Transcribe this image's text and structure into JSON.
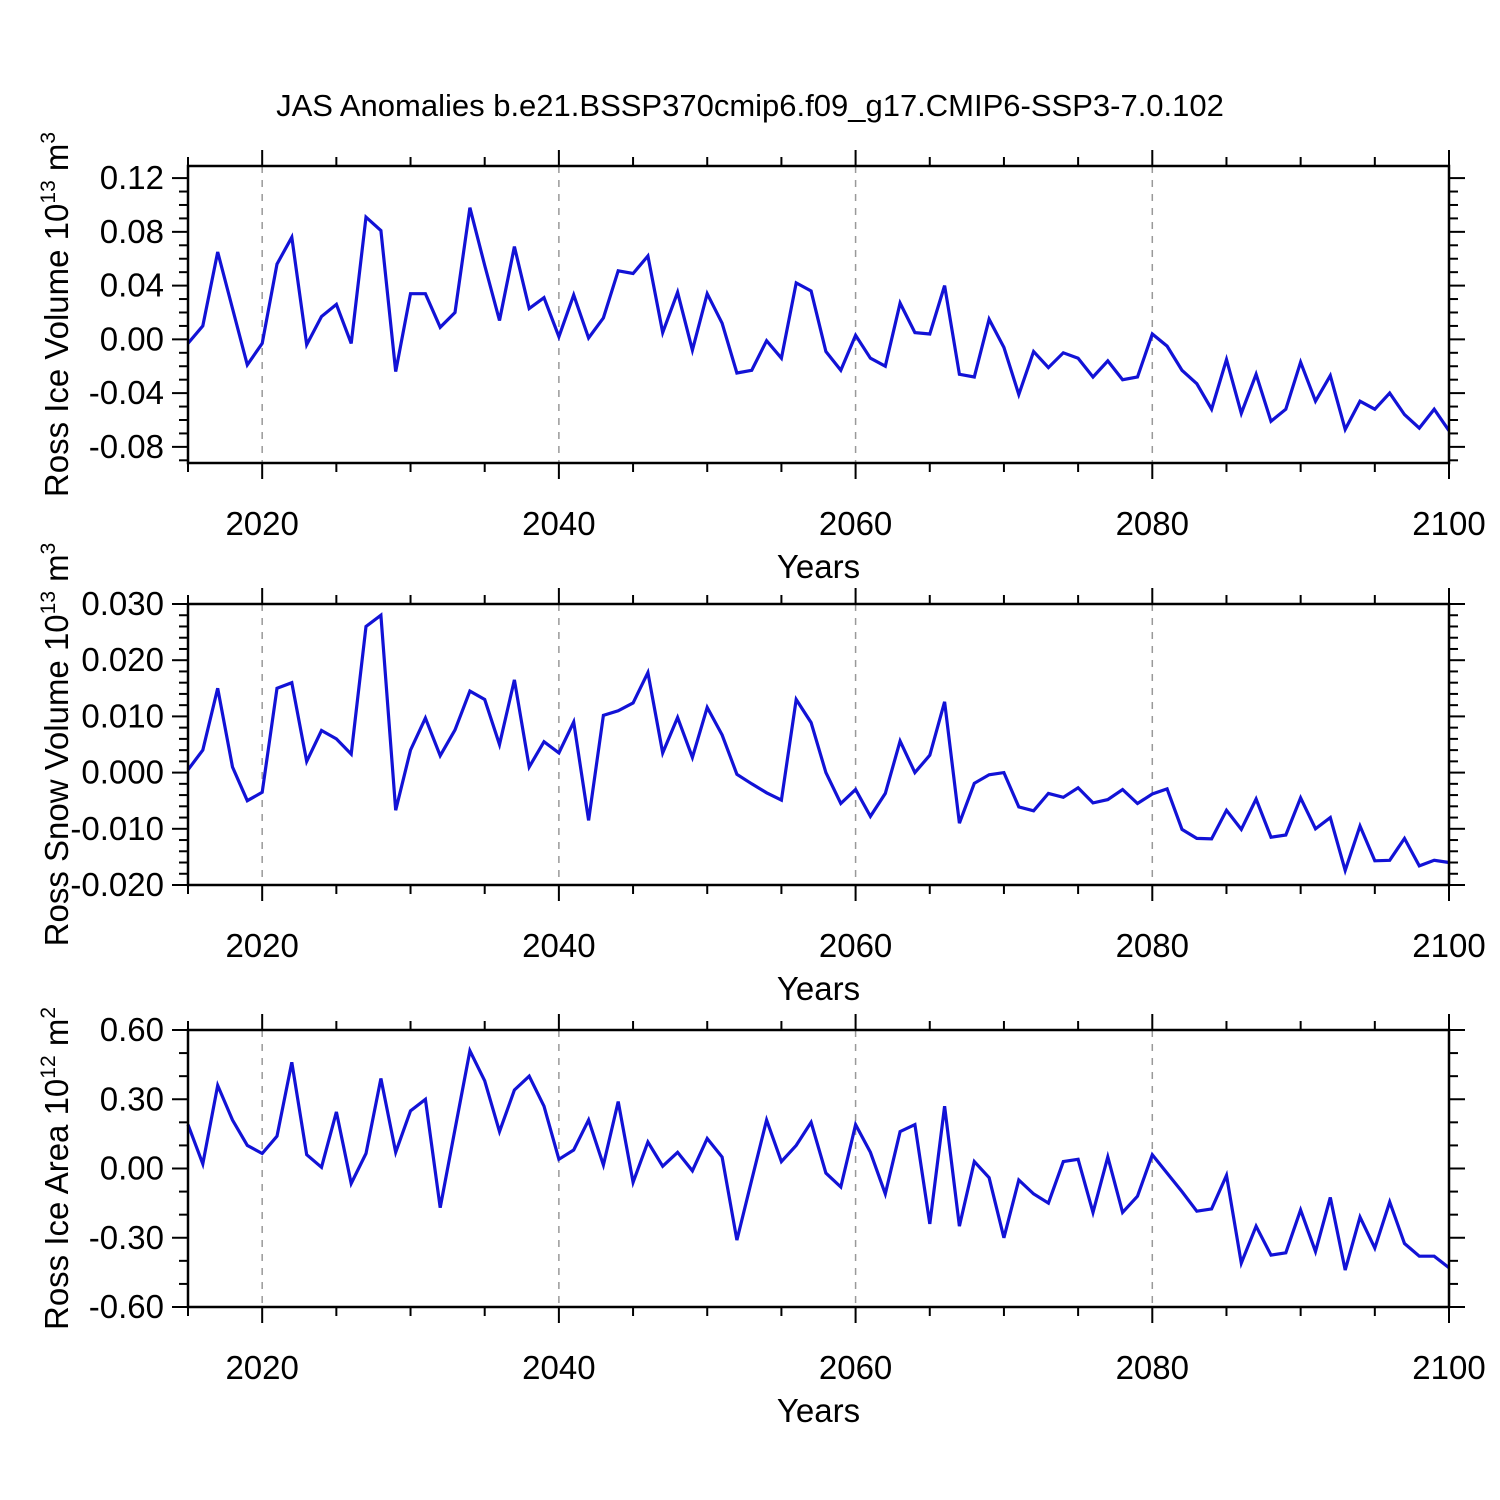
{
  "title": "JAS Anomalies b.e21.BSSP370cmip6.f09_g17.CMIP6-SSP3-7.0.102",
  "style": {
    "line_color": "#1212d6",
    "grid_color": "#999999",
    "axis_color": "#000000",
    "background": "#ffffff"
  },
  "x_axis": {
    "label": "Years",
    "min": 2015,
    "max": 2100,
    "major_ticks": [
      2020,
      2040,
      2060,
      2080,
      2100
    ],
    "minor_step": 5,
    "grid_years": [
      2020,
      2040,
      2060,
      2080
    ]
  },
  "years": [
    2015,
    2016,
    2017,
    2018,
    2019,
    2020,
    2021,
    2022,
    2023,
    2024,
    2025,
    2026,
    2027,
    2028,
    2029,
    2030,
    2031,
    2032,
    2033,
    2034,
    2035,
    2036,
    2037,
    2038,
    2039,
    2040,
    2041,
    2042,
    2043,
    2044,
    2045,
    2046,
    2047,
    2048,
    2049,
    2050,
    2051,
    2052,
    2053,
    2054,
    2055,
    2056,
    2057,
    2058,
    2059,
    2060,
    2061,
    2062,
    2063,
    2064,
    2065,
    2066,
    2067,
    2068,
    2069,
    2070,
    2071,
    2072,
    2073,
    2074,
    2075,
    2076,
    2077,
    2078,
    2079,
    2080,
    2081,
    2082,
    2083,
    2084,
    2085,
    2086,
    2087,
    2088,
    2089,
    2090,
    2091,
    2092,
    2093,
    2094,
    2095,
    2096,
    2097,
    2098,
    2099,
    2100
  ],
  "chart_data": [
    {
      "type": "line",
      "name": "ross-ice-volume",
      "ylabel_prefix": "Ross Ice Volume 10",
      "ylabel_exp": "13",
      "ylabel_unit": " m",
      "ylabel_unit_exp": "3",
      "ylim": [
        -0.092,
        0.129
      ],
      "ytick_values": [
        -0.08,
        -0.04,
        0.0,
        0.04,
        0.08,
        0.12
      ],
      "ytick_labels": [
        "-0.08",
        "-0.04",
        "0.00",
        "0.04",
        "0.08",
        "0.12"
      ],
      "ytick_minor_step": 0.01,
      "values": [
        -0.003,
        0.01,
        0.065,
        0.023,
        -0.019,
        -0.003,
        0.056,
        0.076,
        -0.004,
        0.017,
        0.026,
        -0.003,
        0.091,
        0.081,
        -0.024,
        0.034,
        0.034,
        0.009,
        0.02,
        0.098,
        0.055,
        0.014,
        0.069,
        0.023,
        0.031,
        0.002,
        0.033,
        0.001,
        0.016,
        0.051,
        0.049,
        0.062,
        0.005,
        0.035,
        -0.008,
        0.034,
        0.012,
        -0.025,
        -0.023,
        -0.001,
        -0.014,
        0.042,
        0.036,
        -0.009,
        -0.023,
        0.003,
        -0.014,
        -0.02,
        0.027,
        0.005,
        0.004,
        0.04,
        -0.026,
        -0.028,
        0.015,
        -0.006,
        -0.041,
        -0.009,
        -0.021,
        -0.01,
        -0.014,
        -0.028,
        -0.016,
        -0.03,
        -0.028,
        0.004,
        -0.005,
        -0.023,
        -0.033,
        -0.052,
        -0.015,
        -0.055,
        -0.026,
        -0.061,
        -0.052,
        -0.017,
        -0.046,
        -0.027,
        -0.067,
        -0.046,
        -0.052,
        -0.04,
        -0.056,
        -0.066,
        -0.052,
        -0.068
      ]
    },
    {
      "type": "line",
      "name": "ross-snow-volume",
      "ylabel_prefix": "Ross Snow Volume 10",
      "ylabel_exp": "13",
      "ylabel_unit": " m",
      "ylabel_unit_exp": "3",
      "ylim": [
        -0.02,
        0.03
      ],
      "ytick_values": [
        -0.02,
        -0.01,
        0.0,
        0.01,
        0.02,
        0.03
      ],
      "ytick_labels": [
        "-0.020",
        "-0.010",
        "0.000",
        "0.010",
        "0.020",
        "0.030"
      ],
      "ytick_minor_step": 0.002,
      "values": [
        0.0005,
        0.004,
        0.015,
        0.001,
        -0.005,
        -0.0035,
        0.015,
        0.016,
        0.002,
        0.0075,
        0.006,
        0.0033,
        0.026,
        0.028,
        -0.0067,
        0.004,
        0.0097,
        0.003,
        0.0076,
        0.0145,
        0.013,
        0.005,
        0.0165,
        0.001,
        0.0055,
        0.0035,
        0.009,
        -0.0085,
        0.0102,
        0.011,
        0.0124,
        0.0178,
        0.0035,
        0.0098,
        0.0027,
        0.0116,
        0.0067,
        -0.0003,
        -0.002,
        -0.0036,
        -0.0049,
        0.013,
        0.0089,
        0.0,
        -0.0055,
        -0.003,
        -0.0078,
        -0.0037,
        0.0056,
        0.0,
        0.0031,
        0.0126,
        -0.009,
        -0.0019,
        -0.0004,
        0.0,
        -0.0061,
        -0.0068,
        -0.0037,
        -0.0044,
        -0.0027,
        -0.0054,
        -0.0048,
        -0.003,
        -0.0055,
        -0.0038,
        -0.0029,
        -0.0101,
        -0.0117,
        -0.0118,
        -0.0067,
        -0.0101,
        -0.0047,
        -0.0115,
        -0.0111,
        -0.0045,
        -0.01,
        -0.008,
        -0.0174,
        -0.0095,
        -0.0157,
        -0.0156,
        -0.0117,
        -0.0166,
        -0.0156,
        -0.016
      ]
    },
    {
      "type": "line",
      "name": "ross-ice-area",
      "ylabel_prefix": "Ross Ice Area 10",
      "ylabel_exp": "12",
      "ylabel_unit": " m",
      "ylabel_unit_exp": "2",
      "ylim": [
        -0.6,
        0.6
      ],
      "ytick_values": [
        -0.6,
        -0.3,
        0.0,
        0.3,
        0.6
      ],
      "ytick_labels": [
        "-0.60",
        "-0.30",
        "0.00",
        "0.30",
        "0.60"
      ],
      "ytick_minor_step": 0.1,
      "values": [
        0.19,
        0.02,
        0.36,
        0.21,
        0.1,
        0.065,
        0.14,
        0.46,
        0.06,
        0.005,
        0.245,
        -0.065,
        0.065,
        0.39,
        0.07,
        0.25,
        0.3,
        -0.17,
        0.17,
        0.51,
        0.38,
        0.16,
        0.34,
        0.4,
        0.27,
        0.04,
        0.08,
        0.21,
        0.015,
        0.29,
        -0.06,
        0.115,
        0.01,
        0.07,
        -0.01,
        0.13,
        0.05,
        -0.31,
        -0.05,
        0.21,
        0.03,
        0.1,
        0.2,
        -0.02,
        -0.08,
        0.19,
        0.07,
        -0.11,
        0.16,
        0.19,
        -0.24,
        0.27,
        -0.25,
        0.03,
        -0.04,
        -0.3,
        -0.05,
        -0.11,
        -0.15,
        0.03,
        0.04,
        -0.19,
        0.05,
        -0.19,
        -0.12,
        0.06,
        -0.02,
        -0.1,
        -0.185,
        -0.175,
        -0.03,
        -0.41,
        -0.25,
        -0.375,
        -0.365,
        -0.18,
        -0.36,
        -0.125,
        -0.44,
        -0.21,
        -0.345,
        -0.145,
        -0.325,
        -0.38,
        -0.38,
        -0.43
      ]
    }
  ]
}
